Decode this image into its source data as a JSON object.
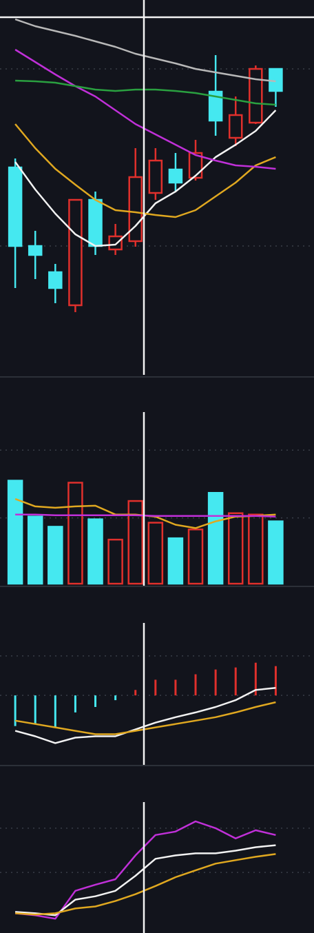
{
  "chart_data": [
    {
      "type": "candlestick",
      "x": [
        0,
        1,
        2,
        3,
        4,
        5,
        6,
        7,
        8,
        9,
        10,
        11,
        12,
        13
      ],
      "open": [
        35.7,
        24.3,
        20.5,
        15.7,
        31.0,
        23.8,
        25.0,
        32.0,
        35.4,
        34.2,
        46.7,
        40.0,
        42.2,
        50.0
      ],
      "high": [
        37.0,
        26.5,
        21.7,
        31.0,
        32.2,
        27.5,
        38.5,
        38.5,
        37.8,
        39.7,
        52.0,
        46.0,
        50.5,
        50.0
      ],
      "low": [
        18.2,
        19.5,
        16.0,
        14.7,
        23.0,
        23.0,
        24.2,
        31.0,
        32.2,
        33.8,
        40.3,
        38.8,
        42.0,
        44.5
      ],
      "close": [
        24.3,
        23.0,
        18.2,
        31.0,
        24.3,
        25.7,
        34.3,
        36.7,
        33.5,
        37.8,
        42.5,
        43.3,
        50.0,
        46.8
      ],
      "colors": [
        "#45e8f0",
        "#45e8f0",
        "#45e8f0",
        "#e0302c",
        "#45e8f0",
        "#e0302c",
        "#e0302c",
        "#e0302c",
        "#45e8f0",
        "#e0302c",
        "#45e8f0",
        "#e0302c",
        "#e0302c",
        "#45e8f0"
      ],
      "hollow": "#e0302c",
      "series": [
        {
          "color": "#f2f2f2",
          "values": [
            36.5,
            32.5,
            29.0,
            26.0,
            24.3,
            24.5,
            27.2,
            30.5,
            32.2,
            34.5,
            37.2,
            39.0,
            41.0,
            44.0
          ]
        },
        {
          "color": "#e0a820",
          "values": [
            42.0,
            38.5,
            35.5,
            33.2,
            31.0,
            29.5,
            29.2,
            28.8,
            28.5,
            29.5,
            31.5,
            33.5,
            36.0,
            37.2
          ]
        },
        {
          "color": "#c030d8",
          "values": [
            52.8,
            51.0,
            49.2,
            47.5,
            46.0,
            44.0,
            42.0,
            40.5,
            39.0,
            37.5,
            36.7,
            36.0,
            35.8,
            35.5
          ]
        },
        {
          "color": "#2aa040",
          "values": [
            48.3,
            48.2,
            48.0,
            47.5,
            47.0,
            46.8,
            47.0,
            47.0,
            46.8,
            46.5,
            46.0,
            45.5,
            45.0,
            44.8
          ]
        },
        {
          "color": "#b8b8b8",
          "values": [
            57.2,
            56.2,
            55.5,
            54.8,
            54.0,
            53.2,
            52.2,
            51.5,
            50.8,
            50.0,
            49.5,
            49.0,
            48.5,
            48.2
          ]
        }
      ],
      "xlim": [
        -0.76,
        14.91
      ],
      "ylim": [
        5.5,
        60
      ],
      "yticks": [
        24.3,
        50
      ]
    },
    {
      "type": "bar",
      "x": [
        0,
        1,
        2,
        3,
        4,
        5,
        6,
        7,
        8,
        9,
        10,
        11,
        12,
        13
      ],
      "values": [
        152,
        99,
        84,
        149,
        95,
        65,
        122,
        90,
        67,
        80,
        134,
        104,
        102,
        92
      ],
      "colors": [
        "#45e8f0",
        "#45e8f0",
        "#45e8f0",
        "#e0302c",
        "#45e8f0",
        "#e0302c",
        "#e0302c",
        "#e0302c",
        "#45e8f0",
        "#e0302c",
        "#45e8f0",
        "#e0302c",
        "#e0302c",
        "#45e8f0"
      ],
      "hollow": "#e0302c",
      "series": [
        {
          "color": "#e0a820",
          "values": [
            125,
            114,
            112,
            114,
            115,
            102,
            102,
            99,
            87,
            82,
            92,
            99,
            100,
            102
          ]
        },
        {
          "color": "#c030d8",
          "values": [
            102,
            102,
            101,
            101,
            101,
            101,
            101,
            100,
            100,
            100,
            100,
            100,
            100,
            99
          ]
        }
      ],
      "xlim": [
        -0.76,
        14.91
      ],
      "ylim": [
        -3,
        302
      ],
      "yticks": [
        97,
        197
      ]
    },
    {
      "type": "stem",
      "x": [
        0,
        1,
        2,
        3,
        4,
        5,
        6,
        7,
        8,
        9,
        10,
        11,
        12,
        13
      ],
      "values": [
        -4.5,
        -4.2,
        -4.7,
        -2.5,
        -1.7,
        -0.7,
        0.8,
        2.3,
        2.3,
        3.1,
        3.8,
        4.1,
        4.8,
        4.3
      ],
      "colors": [
        "#45e8f0",
        "#45e8f0",
        "#45e8f0",
        "#45e8f0",
        "#45e8f0",
        "#45e8f0",
        "#e0302c",
        "#e0302c",
        "#e0302c",
        "#e0302c",
        "#e0302c",
        "#e0302c",
        "#e0302c",
        "#e0302c"
      ],
      "series": [
        {
          "color": "#f2f2f2",
          "values": [
            -5.2,
            -6.0,
            -7.0,
            -6.2,
            -6.0,
            -6.0,
            -5.0,
            -4.0,
            -3.2,
            -2.5,
            -1.7,
            -0.7,
            0.8,
            1.1
          ]
        },
        {
          "color": "#e0a820",
          "values": [
            -3.7,
            -4.2,
            -4.7,
            -5.2,
            -5.7,
            -5.7,
            -5.2,
            -4.7,
            -4.2,
            -3.7,
            -3.2,
            -2.5,
            -1.7,
            -1.0
          ]
        }
      ],
      "xlim": [
        -0.76,
        14.91
      ],
      "ylim": [
        -10.2,
        15.8
      ],
      "yticks": [
        0,
        5.8
      ]
    },
    {
      "type": "line",
      "x": [
        0,
        1,
        2,
        3,
        4,
        5,
        6,
        7,
        8,
        9,
        10,
        11,
        12,
        13
      ],
      "series": [
        {
          "color": "#c030d8",
          "values": [
            29,
            26,
            21,
            62,
            71,
            79,
            114,
            144,
            149,
            164,
            154,
            139,
            151,
            144
          ]
        },
        {
          "color": "#f2f2f2",
          "values": [
            31,
            29,
            26,
            49,
            54,
            62,
            84,
            109,
            114,
            117,
            117,
            121,
            126,
            129
          ]
        },
        {
          "color": "#e0a820",
          "values": [
            29,
            27,
            29,
            36,
            39,
            47,
            57,
            69,
            82,
            92,
            102,
            107,
            112,
            116
          ]
        }
      ],
      "xlim": [
        -0.76,
        14.91
      ],
      "ylim": [
        0,
        244
      ],
      "yticks": [
        89,
        154
      ]
    }
  ]
}
